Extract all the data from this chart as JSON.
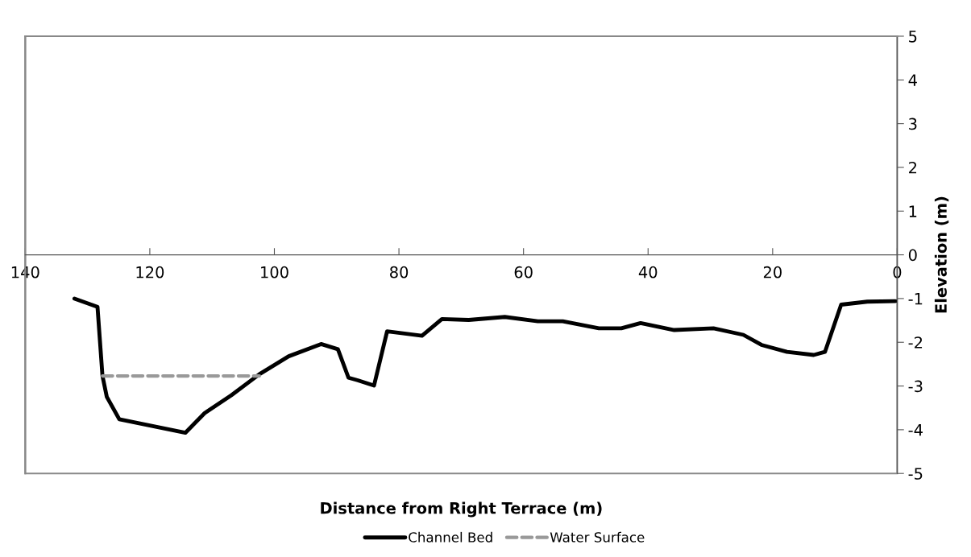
{
  "chart_data": {
    "type": "line",
    "xlabel": "Distance from Right Terrace (m)",
    "ylabel": "Elevation (m)",
    "xlim": [
      140,
      0
    ],
    "xticks": [
      140,
      120,
      100,
      80,
      60,
      40,
      20,
      0
    ],
    "ylim": [
      -5,
      5
    ],
    "yticks": [
      -5,
      -4,
      -3,
      -2,
      -1,
      0,
      1,
      2,
      3,
      4,
      5
    ],
    "grid": false,
    "legend": "bottom",
    "marker": "none",
    "series": [
      {
        "name": "Channel Bed",
        "color": "#000000",
        "line_style": "solid",
        "x": [
          132.1,
          128.4,
          127.6,
          126.9,
          124.9,
          114.3,
          111.2,
          106.9,
          102.4,
          97.7,
          92.5,
          89.8,
          88.1,
          86.6,
          84.0,
          81.9,
          76.3,
          73.1,
          68.8,
          63.0,
          57.7,
          53.7,
          47.9,
          44.3,
          41.2,
          35.8,
          29.5,
          24.7,
          21.8,
          17.7,
          13.4,
          11.6,
          9.0,
          4.8,
          0.3
        ],
        "values": [
          -1.0,
          -1.19,
          -2.77,
          -3.25,
          -3.76,
          -4.07,
          -3.62,
          -3.21,
          -2.73,
          -2.32,
          -2.04,
          -2.16,
          -2.81,
          -2.87,
          -2.99,
          -1.75,
          -1.85,
          -1.47,
          -1.49,
          -1.42,
          -1.52,
          -1.52,
          -1.68,
          -1.68,
          -1.56,
          -1.72,
          -1.68,
          -1.83,
          -2.06,
          -2.22,
          -2.29,
          -2.22,
          -1.14,
          -1.07,
          -1.06
        ]
      },
      {
        "name": "Water Surface",
        "color": "#999999",
        "line_style": "dashed",
        "x": [
          127.6,
          102.4
        ],
        "values": [
          -2.77,
          -2.77
        ]
      }
    ]
  }
}
